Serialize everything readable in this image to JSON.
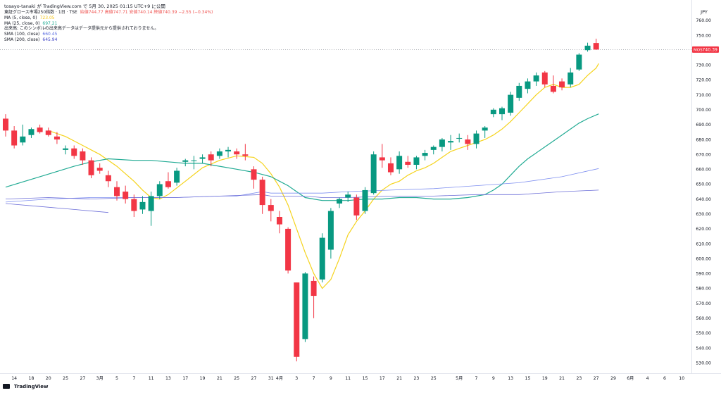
{
  "publisher_line": "tosayo-tanaki が TradingView.com で 5月 30, 2025 01:15 UTC+9 に公開",
  "legend": {
    "symbol": "東証グロース市場250指数 · 1日 · TSE",
    "ohlc": "始値744.77  高値747.71  安値740.14  終値740.39  −2.55 (−0.34%)",
    "ma5_name": "MA (5, close, 0)",
    "ma5_value": "723.05",
    "ma25_name": "MA (25, close, 0)",
    "ma25_value": "697.21",
    "volume_note": "出来高: このシンボルの出来高データはデータ提供元から提供されておりません。",
    "sma100_name": "SMA (100, close)",
    "sma100_value": "660.45",
    "sma200_name": "SMA (200, close)",
    "sma200_value": "645.94"
  },
  "branding": "TradingView",
  "colors": {
    "up": "#089981",
    "down": "#f23645",
    "ma5": "#f5d31c",
    "ma25": "#22ab94",
    "sma100": "#7e8ff0",
    "sma200": "#6d6fd8",
    "price_tag": "#f23645"
  },
  "chart_data": {
    "type": "candlestick",
    "currency": "JPY",
    "last_price_label": "740.39",
    "last_price_tag": "MOS",
    "ylim": [
      523,
      768
    ],
    "y_ticks": [
      530,
      540,
      550,
      560,
      570,
      580,
      590,
      600,
      610,
      620,
      630,
      640,
      650,
      660,
      670,
      680,
      690,
      700,
      710,
      720,
      730,
      740,
      750,
      760
    ],
    "x_tick_labels": [
      {
        "i": 1,
        "label": "14"
      },
      {
        "i": 3,
        "label": "18"
      },
      {
        "i": 5,
        "label": "20"
      },
      {
        "i": 7,
        "label": "25"
      },
      {
        "i": 9,
        "label": "27"
      },
      {
        "i": 11,
        "label": "3月"
      },
      {
        "i": 13,
        "label": "5"
      },
      {
        "i": 15,
        "label": "7"
      },
      {
        "i": 17,
        "label": "11"
      },
      {
        "i": 19,
        "label": "13"
      },
      {
        "i": 21,
        "label": "17"
      },
      {
        "i": 23,
        "label": "19"
      },
      {
        "i": 25,
        "label": "21"
      },
      {
        "i": 27,
        "label": "25"
      },
      {
        "i": 29,
        "label": "27"
      },
      {
        "i": 31,
        "label": "31"
      },
      {
        "i": 32,
        "label": "4月"
      },
      {
        "i": 34,
        "label": "3"
      },
      {
        "i": 36,
        "label": "7"
      },
      {
        "i": 38,
        "label": "9"
      },
      {
        "i": 40,
        "label": "11"
      },
      {
        "i": 42,
        "label": "15"
      },
      {
        "i": 44,
        "label": "17"
      },
      {
        "i": 46,
        "label": "21"
      },
      {
        "i": 48,
        "label": "23"
      },
      {
        "i": 50,
        "label": "25"
      },
      {
        "i": 53,
        "label": "5月"
      },
      {
        "i": 55,
        "label": "7"
      },
      {
        "i": 57,
        "label": "9"
      },
      {
        "i": 59,
        "label": "13"
      },
      {
        "i": 61,
        "label": "15"
      },
      {
        "i": 63,
        "label": "19"
      },
      {
        "i": 65,
        "label": "21"
      },
      {
        "i": 67,
        "label": "23"
      },
      {
        "i": 69,
        "label": "27"
      },
      {
        "i": 71,
        "label": "29"
      },
      {
        "i": 73,
        "label": "6月"
      },
      {
        "i": 75,
        "label": "4"
      },
      {
        "i": 77,
        "label": "6"
      },
      {
        "i": 79,
        "label": "10"
      }
    ],
    "candles": [
      {
        "o": 694,
        "h": 697,
        "l": 682,
        "c": 686
      },
      {
        "o": 686,
        "h": 689,
        "l": 674,
        "c": 676
      },
      {
        "o": 678,
        "h": 690,
        "l": 676,
        "c": 682
      },
      {
        "o": 683,
        "h": 688,
        "l": 681,
        "c": 687
      },
      {
        "o": 688,
        "h": 690,
        "l": 684,
        "c": 685
      },
      {
        "o": 686,
        "h": 688,
        "l": 682,
        "c": 683
      },
      {
        "o": 682,
        "h": 685,
        "l": 677,
        "c": 680
      },
      {
        "o": 673,
        "h": 676,
        "l": 670,
        "c": 674
      },
      {
        "o": 674,
        "h": 676,
        "l": 667,
        "c": 669
      },
      {
        "o": 672,
        "h": 674,
        "l": 663,
        "c": 666
      },
      {
        "o": 666,
        "h": 668,
        "l": 654,
        "c": 656
      },
      {
        "o": 661,
        "h": 664,
        "l": 657,
        "c": 659
      },
      {
        "o": 656,
        "h": 659,
        "l": 648,
        "c": 652
      },
      {
        "o": 648,
        "h": 652,
        "l": 639,
        "c": 642
      },
      {
        "o": 645,
        "h": 649,
        "l": 637,
        "c": 640
      },
      {
        "o": 640,
        "h": 643,
        "l": 628,
        "c": 632
      },
      {
        "o": 633,
        "h": 642,
        "l": 630,
        "c": 638
      },
      {
        "o": 632,
        "h": 645,
        "l": 622,
        "c": 642
      },
      {
        "o": 642,
        "h": 652,
        "l": 640,
        "c": 650
      },
      {
        "o": 652,
        "h": 658,
        "l": 647,
        "c": 648
      },
      {
        "o": 651,
        "h": 661,
        "l": 649,
        "c": 659
      },
      {
        "o": 665,
        "h": 667,
        "l": 662,
        "c": 666
      },
      {
        "o": 666,
        "h": 669,
        "l": 660,
        "c": 666
      },
      {
        "o": 667,
        "h": 670,
        "l": 664,
        "c": 668
      },
      {
        "o": 670,
        "h": 672,
        "l": 662,
        "c": 666
      },
      {
        "o": 669,
        "h": 674,
        "l": 667,
        "c": 672
      },
      {
        "o": 672,
        "h": 675,
        "l": 668,
        "c": 673
      },
      {
        "o": 672,
        "h": 674,
        "l": 667,
        "c": 670
      },
      {
        "o": 670,
        "h": 677,
        "l": 666,
        "c": 669
      },
      {
        "o": 660,
        "h": 662,
        "l": 647,
        "c": 653
      },
      {
        "o": 653,
        "h": 655,
        "l": 630,
        "c": 636
      },
      {
        "o": 636,
        "h": 640,
        "l": 625,
        "c": 632
      },
      {
        "o": 628,
        "h": 632,
        "l": 617,
        "c": 623
      },
      {
        "o": 620,
        "h": 621,
        "l": 590,
        "c": 592
      },
      {
        "o": 584,
        "h": 584,
        "l": 531,
        "c": 534
      },
      {
        "o": 546,
        "h": 591,
        "l": 544,
        "c": 590
      },
      {
        "o": 585,
        "h": 588,
        "l": 560,
        "c": 575
      },
      {
        "o": 586,
        "h": 617,
        "l": 584,
        "c": 614
      },
      {
        "o": 606,
        "h": 634,
        "l": 600,
        "c": 632
      },
      {
        "o": 637,
        "h": 641,
        "l": 634,
        "c": 640
      },
      {
        "o": 641,
        "h": 645,
        "l": 638,
        "c": 643
      },
      {
        "o": 641,
        "h": 643,
        "l": 626,
        "c": 629
      },
      {
        "o": 632,
        "h": 648,
        "l": 630,
        "c": 646
      },
      {
        "o": 644,
        "h": 672,
        "l": 643,
        "c": 670
      },
      {
        "o": 668,
        "h": 677,
        "l": 661,
        "c": 666
      },
      {
        "o": 664,
        "h": 668,
        "l": 656,
        "c": 658
      },
      {
        "o": 660,
        "h": 672,
        "l": 657,
        "c": 669
      },
      {
        "o": 665,
        "h": 669,
        "l": 661,
        "c": 663
      },
      {
        "o": 663,
        "h": 669,
        "l": 660,
        "c": 668
      },
      {
        "o": 669,
        "h": 673,
        "l": 666,
        "c": 671
      },
      {
        "o": 673,
        "h": 676,
        "l": 670,
        "c": 675
      },
      {
        "o": 675,
        "h": 681,
        "l": 672,
        "c": 680
      },
      {
        "o": 678,
        "h": 683,
        "l": 673,
        "c": 679
      },
      {
        "o": 681,
        "h": 684,
        "l": 678,
        "c": 681
      },
      {
        "o": 680,
        "h": 683,
        "l": 673,
        "c": 677
      },
      {
        "o": 677,
        "h": 686,
        "l": 674,
        "c": 684
      },
      {
        "o": 686,
        "h": 689,
        "l": 681,
        "c": 688
      },
      {
        "o": 697,
        "h": 701,
        "l": 695,
        "c": 700
      },
      {
        "o": 697,
        "h": 702,
        "l": 693,
        "c": 701
      },
      {
        "o": 698,
        "h": 712,
        "l": 696,
        "c": 710
      },
      {
        "o": 708,
        "h": 718,
        "l": 706,
        "c": 716
      },
      {
        "o": 714,
        "h": 721,
        "l": 711,
        "c": 719
      },
      {
        "o": 719,
        "h": 725,
        "l": 716,
        "c": 723
      },
      {
        "o": 725,
        "h": 726,
        "l": 715,
        "c": 717
      },
      {
        "o": 716,
        "h": 723,
        "l": 711,
        "c": 712
      },
      {
        "o": 719,
        "h": 721,
        "l": 713,
        "c": 715
      },
      {
        "o": 717,
        "h": 728,
        "l": 715,
        "c": 725
      },
      {
        "o": 727,
        "h": 738,
        "l": 726,
        "c": 737
      },
      {
        "o": 740,
        "h": 745,
        "l": 739,
        "c": 743
      },
      {
        "o": 744.77,
        "h": 747.71,
        "l": 740.14,
        "c": 740.39
      }
    ],
    "series": [
      {
        "name": "MA (5, close, 0)",
        "points": [
          [
            5,
            686
          ],
          [
            7,
            682
          ],
          [
            9,
            676
          ],
          [
            11,
            670
          ],
          [
            13,
            662
          ],
          [
            15,
            652
          ],
          [
            16,
            646
          ],
          [
            17,
            641
          ],
          [
            18,
            640
          ],
          [
            19,
            643
          ],
          [
            21,
            652
          ],
          [
            23,
            661
          ],
          [
            25,
            666
          ],
          [
            27,
            669
          ],
          [
            29,
            668
          ],
          [
            30,
            664
          ],
          [
            31,
            657
          ],
          [
            32,
            648
          ],
          [
            33,
            636
          ],
          [
            34,
            620
          ],
          [
            35,
            604
          ],
          [
            36,
            590
          ],
          [
            37,
            580
          ],
          [
            38,
            586
          ],
          [
            39,
            600
          ],
          [
            40,
            616
          ],
          [
            41,
            625
          ],
          [
            42,
            632
          ],
          [
            43,
            640
          ],
          [
            44,
            646
          ],
          [
            45,
            650
          ],
          [
            46,
            652
          ],
          [
            47,
            656
          ],
          [
            48,
            659
          ],
          [
            49,
            661
          ],
          [
            50,
            664
          ],
          [
            51,
            668
          ],
          [
            52,
            672
          ],
          [
            53,
            674
          ],
          [
            54,
            676
          ],
          [
            55,
            678
          ],
          [
            56,
            680
          ],
          [
            57,
            683
          ],
          [
            58,
            687
          ],
          [
            59,
            692
          ],
          [
            60,
            698
          ],
          [
            61,
            704
          ],
          [
            62,
            710
          ],
          [
            63,
            715
          ],
          [
            64,
            717
          ],
          [
            65,
            715
          ],
          [
            66,
            715
          ],
          [
            67,
            717
          ],
          [
            68,
            723
          ],
          [
            69,
            728
          ],
          [
            69.3,
            731
          ]
        ]
      },
      {
        "name": "MA (25, close, 0)",
        "points": [
          [
            0,
            648
          ],
          [
            4,
            655
          ],
          [
            8,
            662
          ],
          [
            10,
            665
          ],
          [
            12,
            667
          ],
          [
            15,
            666
          ],
          [
            17,
            666
          ],
          [
            19,
            665
          ],
          [
            21,
            664
          ],
          [
            23,
            664
          ],
          [
            25,
            662
          ],
          [
            27,
            660
          ],
          [
            29,
            658
          ],
          [
            31,
            655
          ],
          [
            32,
            652
          ],
          [
            33,
            649
          ],
          [
            34,
            645
          ],
          [
            35,
            641
          ],
          [
            36,
            640
          ],
          [
            37,
            639
          ],
          [
            38,
            639
          ],
          [
            40,
            639
          ],
          [
            42,
            640
          ],
          [
            44,
            640
          ],
          [
            46,
            641
          ],
          [
            48,
            641
          ],
          [
            50,
            640
          ],
          [
            52,
            640
          ],
          [
            54,
            641
          ],
          [
            56,
            643
          ],
          [
            57,
            646
          ],
          [
            58,
            650
          ],
          [
            59,
            656
          ],
          [
            60,
            662
          ],
          [
            61,
            667
          ],
          [
            62,
            671
          ],
          [
            63,
            675
          ],
          [
            64,
            679
          ],
          [
            65,
            683
          ],
          [
            66,
            687
          ],
          [
            67,
            691
          ],
          [
            68,
            694
          ],
          [
            69.3,
            697.2
          ]
        ]
      },
      {
        "name": "SMA (100, close)",
        "points": [
          [
            0,
            638
          ],
          [
            5,
            640
          ],
          [
            10,
            641
          ],
          [
            15,
            641
          ],
          [
            20,
            641
          ],
          [
            25,
            642
          ],
          [
            27,
            642
          ],
          [
            29,
            644
          ],
          [
            30,
            645
          ],
          [
            31,
            644
          ],
          [
            33,
            644
          ],
          [
            35,
            644
          ],
          [
            37,
            644
          ],
          [
            40,
            645
          ],
          [
            45,
            646
          ],
          [
            50,
            647
          ],
          [
            55,
            649
          ],
          [
            60,
            651
          ],
          [
            65,
            655
          ],
          [
            69.3,
            660.5
          ]
        ]
      },
      {
        "name": "SMA (200, close)",
        "points": [
          [
            0,
            640
          ],
          [
            5,
            641
          ],
          [
            10,
            640
          ],
          [
            15,
            641
          ],
          [
            20,
            641
          ],
          [
            25,
            642
          ],
          [
            30,
            643
          ],
          [
            31,
            642
          ],
          [
            33,
            642
          ],
          [
            35,
            642
          ],
          [
            37,
            641
          ],
          [
            40,
            641
          ],
          [
            45,
            642
          ],
          [
            50,
            642
          ],
          [
            55,
            643
          ],
          [
            60,
            643
          ],
          [
            65,
            645
          ],
          [
            69.3,
            646
          ]
        ]
      },
      {
        "name": "",
        "points": [
          [
            0,
            637
          ],
          [
            4,
            635
          ],
          [
            8,
            633
          ],
          [
            12,
            631
          ]
        ]
      }
    ]
  }
}
